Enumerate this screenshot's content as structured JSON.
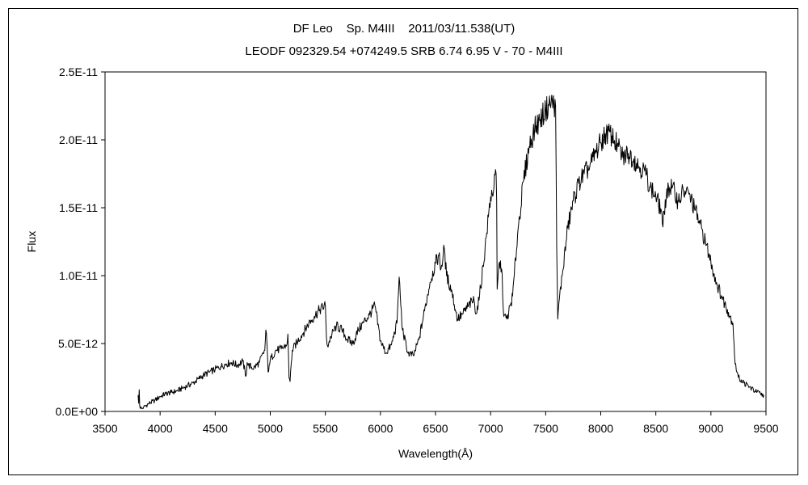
{
  "chart_data": {
    "type": "line",
    "title": "DF Leo    Sp. M4III    2011/03/11.538(UT)",
    "subtitle": "LEODF 092329.54 +074249.5 SRB 6.74 6.95 V - 70 - M4III",
    "xlabel": "Wavelength(Å)",
    "ylabel": "Flux",
    "xlim": [
      3500,
      9500
    ],
    "ylim": [
      0,
      2.5e-11
    ],
    "x_ticks": [
      3500,
      4000,
      4500,
      5000,
      5500,
      6000,
      6500,
      7000,
      7500,
      8000,
      8500,
      9000,
      9500
    ],
    "x_tick_labels": [
      "3500",
      "4000",
      "4500",
      "5000",
      "5500",
      "6000",
      "6500",
      "7000",
      "7500",
      "8000",
      "8500",
      "9000",
      "9500"
    ],
    "y_ticks": [
      0,
      5e-12,
      1e-11,
      1.5e-11,
      2e-11,
      2.5e-11
    ],
    "y_tick_labels": [
      "0.0E+00",
      "5.0E-12",
      "1.0E-11",
      "1.5E-11",
      "2.0E-11",
      "2.5E-11"
    ],
    "grid": false,
    "line_color": "#000000",
    "series": [
      {
        "x": [
          3800,
          3805,
          3810,
          3815,
          3830,
          3850,
          3900,
          3950,
          4000,
          4050,
          4100,
          4150,
          4200,
          4250,
          4300,
          4350,
          4400,
          4450,
          4500,
          4550,
          4600,
          4650,
          4700,
          4750,
          4780,
          4790,
          4800,
          4850,
          4900,
          4950,
          4960,
          4970,
          4980,
          4990,
          5000,
          5050,
          5100,
          5150,
          5160,
          5170,
          5180,
          5190,
          5200,
          5250,
          5300,
          5350,
          5400,
          5450,
          5500,
          5510,
          5520,
          5550,
          5600,
          5650,
          5700,
          5750,
          5800,
          5850,
          5900,
          5950,
          6000,
          6050,
          6100,
          6150,
          6160,
          6170,
          6180,
          6200,
          6250,
          6300,
          6350,
          6400,
          6450,
          6500,
          6530,
          6550,
          6580,
          6600,
          6650,
          6680,
          6700,
          6750,
          6800,
          6850,
          6870,
          6900,
          6950,
          7000,
          7030,
          7050,
          7055,
          7060,
          7080,
          7100,
          7120,
          7150,
          7200,
          7250,
          7300,
          7350,
          7400,
          7450,
          7500,
          7550,
          7590,
          7600,
          7610,
          7620,
          7650,
          7700,
          7750,
          7800,
          7850,
          7900,
          7950,
          8000,
          8050,
          8100,
          8150,
          8200,
          8250,
          8300,
          8350,
          8400,
          8450,
          8500,
          8550,
          8560,
          8580,
          8600,
          8650,
          8700,
          8750,
          8800,
          8850,
          8900,
          8950,
          9000,
          9050,
          9100,
          9150,
          9200,
          9220,
          9250,
          9300,
          9350,
          9400,
          9450,
          9480
        ],
        "y": [
          1.2e-12,
          6e-13,
          1.6e-12,
          4e-13,
          2e-13,
          3e-13,
          6e-13,
          8e-13,
          1.1e-12,
          1.3e-12,
          1.4e-12,
          1.5e-12,
          1.7e-12,
          1.9e-12,
          2.1e-12,
          2.4e-12,
          2.7e-12,
          2.9e-12,
          3.1e-12,
          3.3e-12,
          3.5e-12,
          3.6e-12,
          3.4e-12,
          3.7e-12,
          2.6e-12,
          3.6e-12,
          3.4e-12,
          3.2e-12,
          3.6e-12,
          4.5e-12,
          6e-12,
          5e-12,
          2.9e-12,
          3.4e-12,
          3.8e-12,
          4.5e-12,
          4.6e-12,
          4.9e-12,
          5.7e-12,
          2.5e-12,
          2.2e-12,
          3.5e-12,
          4.5e-12,
          5.2e-12,
          5.8e-12,
          6.5e-12,
          7e-12,
          7.5e-12,
          7.8e-12,
          5.5e-12,
          4.8e-12,
          5.5e-12,
          6.3e-12,
          6e-12,
          5.3e-12,
          5e-12,
          6e-12,
          6.6e-12,
          7.1e-12,
          7.8e-12,
          5.2e-12,
          4.3e-12,
          4.9e-12,
          6.5e-12,
          8.2e-12,
          9.9e-12,
          8.5e-12,
          6e-12,
          4.3e-12,
          4.1e-12,
          5.3e-12,
          7.4e-12,
          9.5e-12,
          1.09e-11,
          1.15e-11,
          1.05e-11,
          1.2e-11,
          1e-11,
          8.8e-12,
          7.5e-12,
          6.8e-12,
          7.2e-12,
          7.8e-12,
          8.2e-12,
          7.2e-12,
          8.5e-12,
          1.2e-11,
          1.58e-11,
          1.65e-11,
          1.75e-11,
          1.55e-11,
          9e-12,
          1.1e-11,
          1.05e-11,
          7e-12,
          6.8e-12,
          8.5e-12,
          1.35e-11,
          1.7e-11,
          1.95e-11,
          2.08e-11,
          2.15e-11,
          2.22e-11,
          2.28e-11,
          2.25e-11,
          1.2e-11,
          6.8e-12,
          8e-12,
          1e-11,
          1.35e-11,
          1.55e-11,
          1.68e-11,
          1.75e-11,
          1.8e-11,
          1.9e-11,
          1.98e-11,
          2.05e-11,
          2.03e-11,
          1.96e-11,
          1.87e-11,
          1.9e-11,
          1.86e-11,
          1.8e-11,
          1.77e-11,
          1.65e-11,
          1.58e-11,
          1.48e-11,
          1.38e-11,
          1.45e-11,
          1.64e-11,
          1.65e-11,
          1.55e-11,
          1.62e-11,
          1.6e-11,
          1.5e-11,
          1.38e-11,
          1.25e-11,
          1.1e-11,
          9.5e-12,
          8.4e-12,
          7.5e-12,
          6.5e-12,
          3.5e-12,
          2.5e-12,
          2.1e-12,
          1.8e-12,
          1.5e-12,
          1.3e-12,
          1.2e-12
        ]
      }
    ]
  }
}
